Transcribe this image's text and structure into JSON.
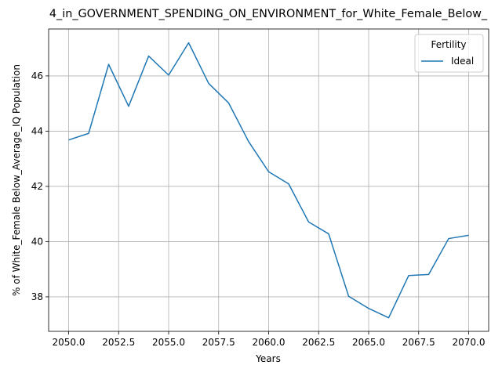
{
  "chart_data": {
    "type": "line",
    "title": "4_in_GOVERNMENT_SPENDING_ON_ENVIRONMENT_for_White_Female_Below_",
    "xlabel": "Years",
    "ylabel": "% of White_Female Below_Average_IQ Population",
    "xlim": [
      2049.0,
      2071.0
    ],
    "ylim": [
      36.75,
      47.7
    ],
    "xticks": [
      2050.0,
      2052.5,
      2055.0,
      2057.5,
      2060.0,
      2062.5,
      2065.0,
      2067.5,
      2070.0
    ],
    "xtick_labels": [
      "2050.0",
      "2052.5",
      "2055.0",
      "2057.5",
      "2060.0",
      "2062.5",
      "2065.0",
      "2067.5",
      "2070.0"
    ],
    "yticks": [
      38,
      40,
      42,
      44,
      46
    ],
    "ytick_labels": [
      "38",
      "40",
      "42",
      "44",
      "46"
    ],
    "grid": true,
    "legend": {
      "title": "Fertility",
      "placement": "top-right"
    },
    "series": [
      {
        "name": "Ideal",
        "color": "#1f77b4",
        "x": [
          2050,
          2051,
          2052,
          2053,
          2054,
          2055,
          2056,
          2057,
          2058,
          2059,
          2060,
          2061,
          2062,
          2063,
          2064,
          2065,
          2066,
          2067,
          2068,
          2069,
          2070
        ],
        "y": [
          43.68,
          43.92,
          46.42,
          44.9,
          46.72,
          46.03,
          47.2,
          45.73,
          45.02,
          43.62,
          42.53,
          42.09,
          40.71,
          40.28,
          38.02,
          37.58,
          37.24,
          38.77,
          38.81,
          40.11,
          40.23
        ]
      }
    ]
  }
}
